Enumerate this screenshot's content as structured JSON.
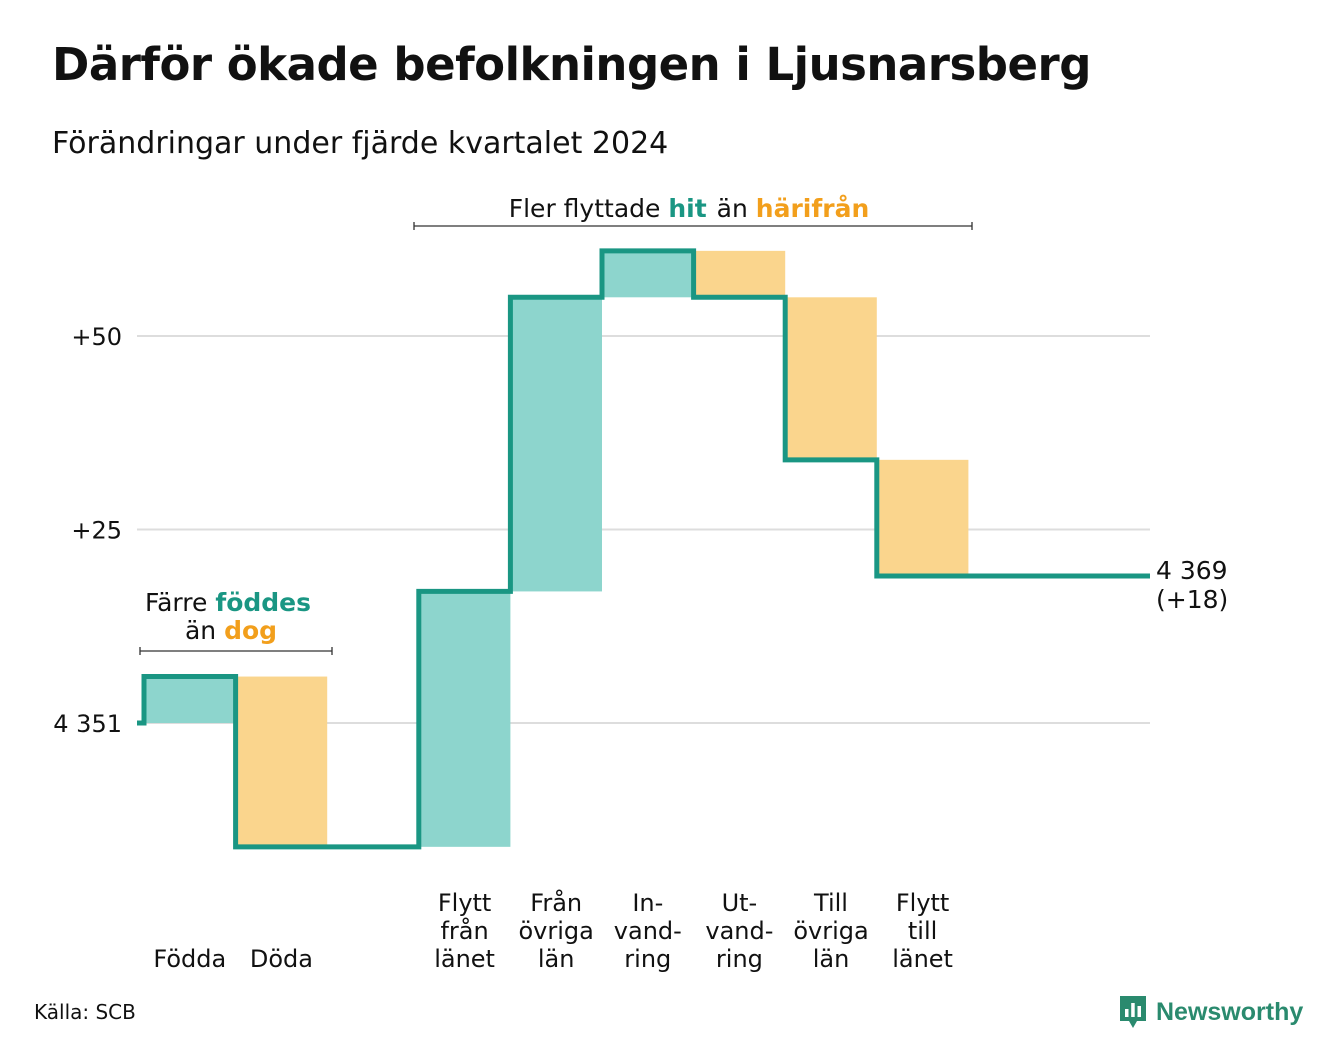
{
  "header": {
    "title": "Därför ökade befolkningen i Ljusnarsberg",
    "subtitle": "Förändringar under fjärde kvartalet 2024"
  },
  "footer": {
    "source": "Källa: SCB",
    "brand": "Newsworthy",
    "brand_icon": "newsworthy-chart-bubble-icon"
  },
  "colors": {
    "increase_fill": "#8dd5cd",
    "decrease_fill": "#fad58d",
    "step_line": "#1a9683",
    "gridline": "#dddddd",
    "hit": "#1a9683",
    "harifran": "#f29f1c",
    "brand": "#2a8a6e"
  },
  "chart_data": {
    "type": "waterfall",
    "start_value": 4351,
    "end_label": "4 369",
    "end_change_label": "(+18)",
    "categories": [
      [
        "Födda"
      ],
      [
        "Döda"
      ],
      [],
      [
        "Flytt",
        "från",
        "länet"
      ],
      [
        "Från",
        "övriga",
        "län"
      ],
      [
        "In-",
        "vand-",
        "ring"
      ],
      [
        "Ut-",
        "vand-",
        "ring"
      ],
      [
        "Till",
        "övriga",
        "län"
      ],
      [
        "Flytt",
        "till",
        "länet"
      ]
    ],
    "changes": [
      6,
      -22,
      0,
      33,
      38,
      6,
      -6,
      -21,
      -15
    ],
    "yticks": [
      {
        "value": 0,
        "label": "4 351"
      },
      {
        "value": 25,
        "label": "+25"
      },
      {
        "value": 50,
        "label": "+50"
      }
    ],
    "ylim": [
      -16,
      62
    ],
    "grid": true,
    "annotations": {
      "natural": {
        "line1_a": "Färre ",
        "line1_b": "föddes",
        "line2_a": "än ",
        "line2_b": "dog"
      },
      "migration": {
        "a": "Fler flyttade ",
        "b": "hit",
        "c": "än ",
        "d": "härifrån"
      }
    }
  }
}
